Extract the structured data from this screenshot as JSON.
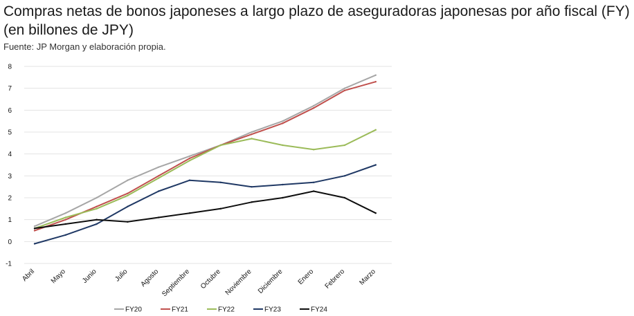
{
  "chart_data": {
    "type": "line",
    "title": "Compras netas de bonos japoneses a largo plazo de aseguradoras japonesas por año fiscal (FY) (en billones de JPY)",
    "source": "Fuente: JP Morgan y elaboración propia.",
    "xlabel": "",
    "ylabel": "",
    "ylim": [
      -1,
      8
    ],
    "yticks": [
      -1,
      0,
      1,
      2,
      3,
      4,
      5,
      6,
      7,
      8
    ],
    "grid": true,
    "legend_position": "bottom",
    "categories": [
      "Abril",
      "Mayo",
      "Junio",
      "Julio",
      "Agosto",
      "Septiembre",
      "Octubre",
      "Noviembre",
      "Diciembre",
      "Enero",
      "Febrero",
      "Marzo"
    ],
    "series": [
      {
        "name": "FY20",
        "color": "#a6a6a6",
        "values": [
          0.7,
          1.3,
          2.0,
          2.8,
          3.4,
          3.9,
          4.4,
          5.0,
          5.5,
          6.2,
          7.0,
          7.6
        ]
      },
      {
        "name": "FY21",
        "color": "#c0504d",
        "values": [
          0.5,
          1.0,
          1.6,
          2.2,
          3.0,
          3.8,
          4.4,
          4.9,
          5.4,
          6.1,
          6.9,
          7.3
        ]
      },
      {
        "name": "FY22",
        "color": "#9bbb59",
        "values": [
          0.6,
          1.1,
          1.5,
          2.1,
          2.9,
          3.7,
          4.4,
          4.7,
          4.4,
          4.2,
          4.4,
          5.1
        ]
      },
      {
        "name": "FY23",
        "color": "#1f3864",
        "values": [
          -0.1,
          0.3,
          0.8,
          1.6,
          2.3,
          2.8,
          2.7,
          2.5,
          2.6,
          2.7,
          3.0,
          3.5
        ]
      },
      {
        "name": "FY24",
        "color": "#0d0d0d",
        "values": [
          0.6,
          0.8,
          1.0,
          0.9,
          1.1,
          1.3,
          1.5,
          1.8,
          2.0,
          2.3,
          2.0,
          1.3
        ]
      }
    ]
  }
}
